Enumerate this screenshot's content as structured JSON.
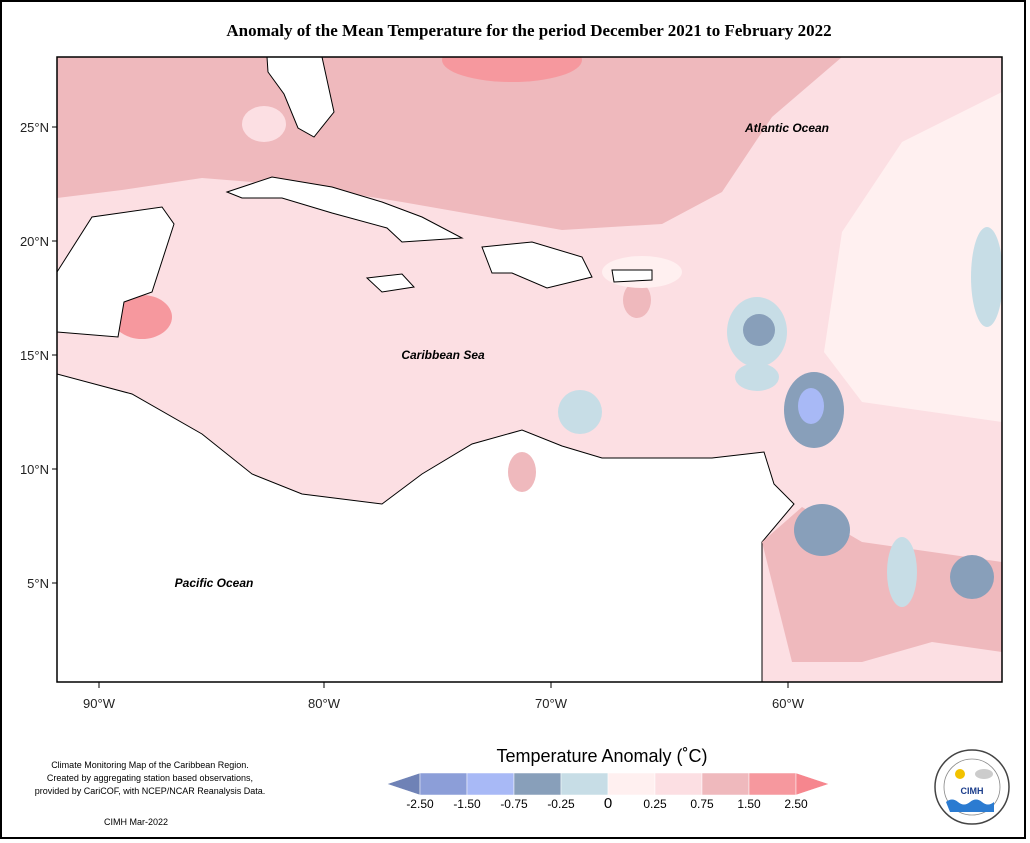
{
  "title": "Anomaly of the Mean Temperature for the period December 2021 to February 2022",
  "places": [
    "Atlantic Ocean",
    "Caribbean Sea",
    "Pacific Ocean"
  ],
  "lat_ticks": [
    "25°N",
    "20°N",
    "15°N",
    "10°N",
    "5°N"
  ],
  "lon_ticks": [
    "90°W",
    "80°W",
    "70°W",
    "60°W"
  ],
  "legend": {
    "title": "Temperature Anomaly (˚C)",
    "labels": [
      "-2.50",
      "-1.50",
      "-0.75",
      "-0.25",
      "0",
      "0.25",
      "0.75",
      "1.50",
      "2.50"
    ],
    "colors": [
      "#6f82b6",
      "#8c9ed8",
      "#a8b9f6",
      "#889fba",
      "#c7dde6",
      "#fff0f0",
      "#fcdfe3",
      "#efb9bd",
      "#f6989e",
      "#f6868e"
    ]
  },
  "footnote": [
    "Climate Monitoring Map of the Caribbean Region.",
    "Created by aggregating station based observations,",
    "provided by CariCOF, with NCEP/NCAR Reanalysis Data."
  ],
  "credit": "CIMH Mar-2022",
  "logo": "CIMH"
}
